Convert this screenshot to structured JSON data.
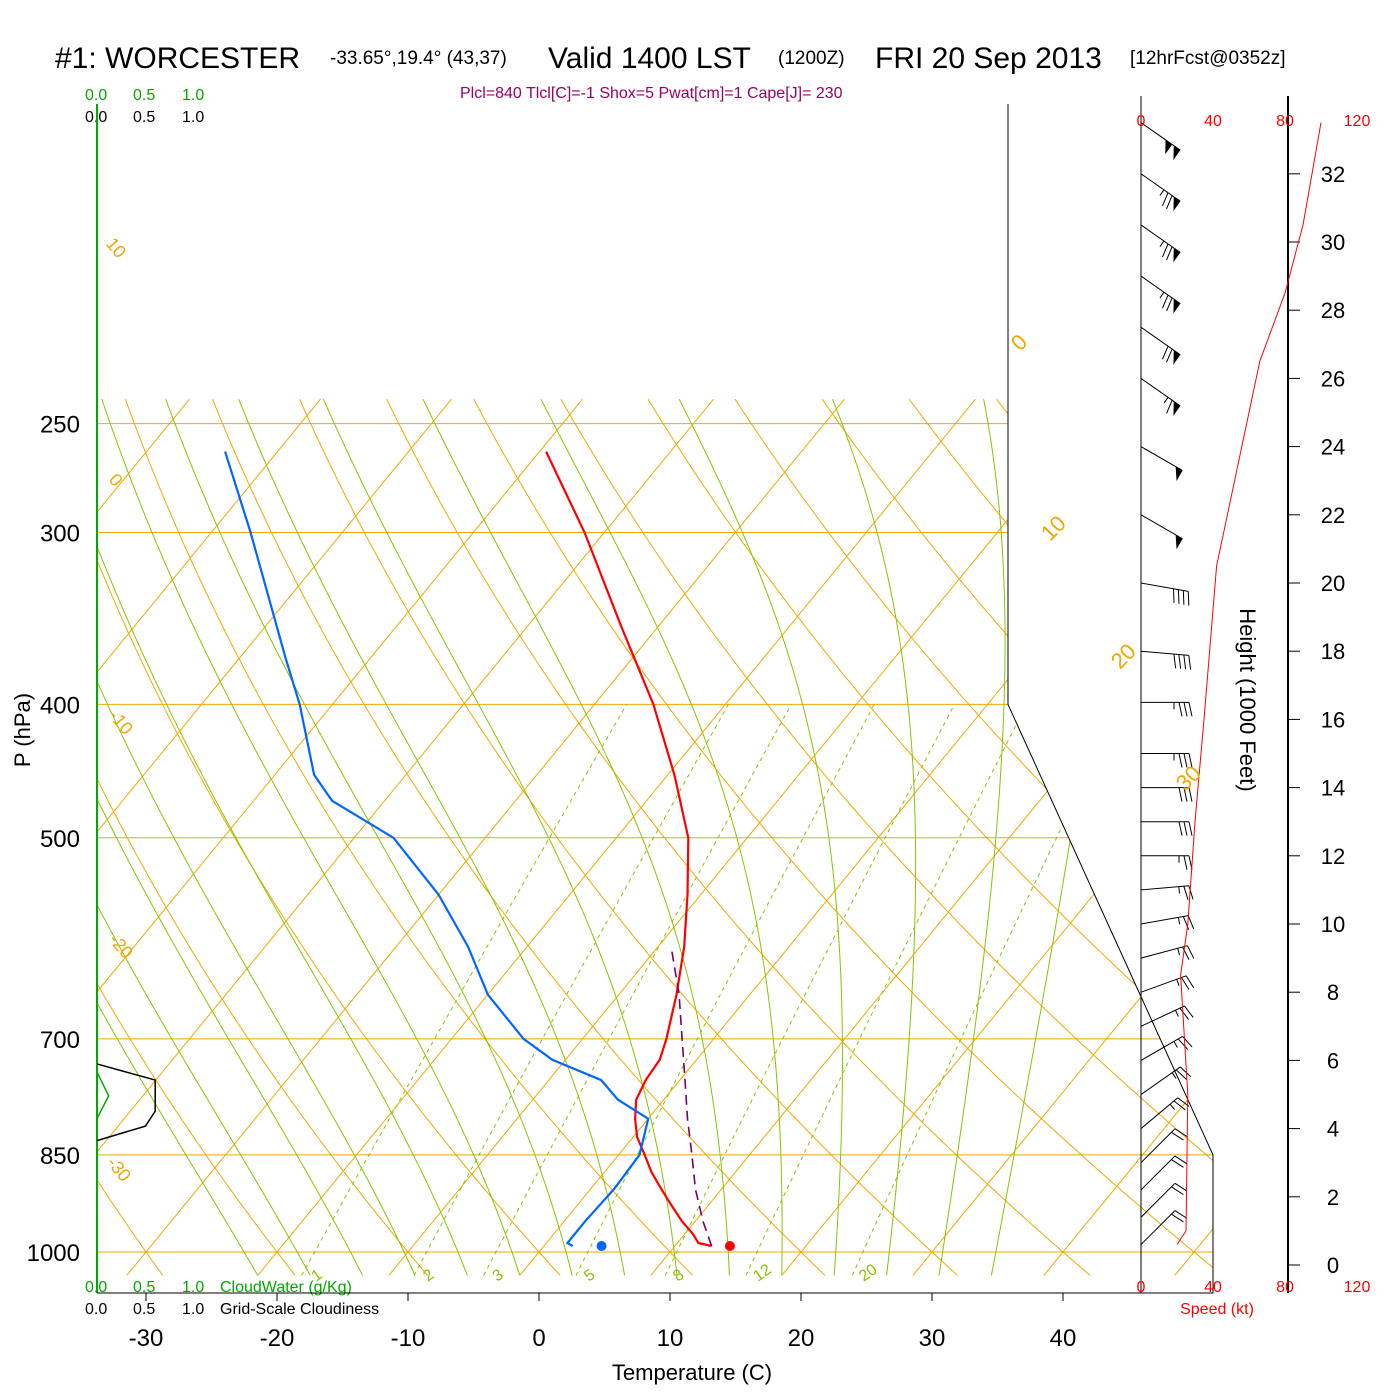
{
  "header": {
    "station": "#1: WORCESTER",
    "coords": "-33.65°,19.4° (43,37)",
    "valid": "Valid 1400 LST",
    "utc": "(1200Z)",
    "date": "FRI 20 Sep 2013",
    "forecast": "[12hrFcst@0352z]"
  },
  "indices": "Plcl=840 Tlcl[C]=-1 Shox=5 Pwat[cm]=1 Cape[J]= 230",
  "cloud_scales": {
    "ticks": [
      "0.0",
      "0.5",
      "1.0"
    ],
    "cloudwater_label": "CloudWater (g/Kg)",
    "cloudiness_label": "Grid-Scale Cloudiness"
  },
  "axes": {
    "pressure_label": "P (hPa)",
    "temperature_label": "Temperature (C)",
    "height_label": "Height (1000 Feet)",
    "speed_label": "Speed (kt)"
  },
  "colors": {
    "temperature": "#ff0000",
    "dewpoint": "#0066ff",
    "parcel": "#7a0066",
    "isotherm": "#f0a800",
    "dry_adiabat": "#f0a800",
    "moist_adiabat": "#88c400",
    "mixing_ratio": "#88c400",
    "cloudwater": "#00aa00",
    "indices_text": "#990066",
    "speed": "#ff0000"
  },
  "chart_data": {
    "type": "line",
    "subtype": "skew-T log-P sounding",
    "x_axis": {
      "label": "Temperature (C)",
      "ticks": [
        -30,
        -20,
        -10,
        0,
        10,
        20,
        30,
        40
      ],
      "range": [
        -34,
        36
      ]
    },
    "y_axis": {
      "label": "P (hPa)",
      "scale": "log",
      "ticks": [
        250,
        300,
        400,
        500,
        700,
        850,
        1000
      ],
      "range": [
        1040,
        250
      ]
    },
    "series": [
      {
        "name": "Temperature",
        "points": [
          [
            990,
            12.8
          ],
          [
            985,
            11.6
          ],
          [
            970,
            10.6
          ],
          [
            950,
            9.0
          ],
          [
            925,
            7.2
          ],
          [
            900,
            5.4
          ],
          [
            875,
            3.6
          ],
          [
            850,
            2.0
          ],
          [
            825,
            0.3
          ],
          [
            800,
            -1.0
          ],
          [
            775,
            -2.1
          ],
          [
            750,
            -2.6
          ],
          [
            725,
            -2.8
          ],
          [
            700,
            -3.6
          ],
          [
            650,
            -5.6
          ],
          [
            600,
            -8.0
          ],
          [
            550,
            -11.0
          ],
          [
            500,
            -14.5
          ],
          [
            450,
            -19.5
          ],
          [
            400,
            -25.5
          ],
          [
            350,
            -33.0
          ],
          [
            300,
            -41.5
          ],
          [
            262,
            -49.5
          ]
        ]
      },
      {
        "name": "Dew Point",
        "points": [
          [
            990,
            2.2
          ],
          [
            985,
            1.6
          ],
          [
            950,
            1.6
          ],
          [
            900,
            1.8
          ],
          [
            850,
            1.6
          ],
          [
            800,
            0.0
          ],
          [
            775,
            -3.5
          ],
          [
            750,
            -6.0
          ],
          [
            725,
            -11.0
          ],
          [
            700,
            -14.5
          ],
          [
            650,
            -20.0
          ],
          [
            600,
            -24.5
          ],
          [
            550,
            -30.0
          ],
          [
            500,
            -37.0
          ],
          [
            470,
            -44.0
          ],
          [
            450,
            -47.0
          ],
          [
            400,
            -52.5
          ],
          [
            370,
            -56.5
          ],
          [
            300,
            -67.0
          ],
          [
            262,
            -74.0
          ]
        ]
      },
      {
        "name": "Parcel",
        "points": [
          [
            990,
            12.8
          ],
          [
            950,
            10.6
          ],
          [
            900,
            8.0
          ],
          [
            850,
            5.6
          ],
          [
            800,
            3.0
          ],
          [
            750,
            0.4
          ],
          [
            700,
            -2.4
          ],
          [
            650,
            -5.4
          ],
          [
            600,
            -9.0
          ]
        ]
      }
    ],
    "surface_markers": {
      "temperature": 14.2,
      "dewpoint": 4.4,
      "pressure": 990
    },
    "isotherm_labels": [
      "10",
      "0",
      "-10",
      "-20",
      "-30"
    ],
    "mixing_ratio_labels": [
      "1",
      "2",
      "3",
      "5",
      "8",
      "12",
      "20"
    ],
    "dry_adiabat_labels": [
      "0",
      "10",
      "20",
      "30"
    ],
    "height_axis": {
      "ticks": [
        0,
        2,
        4,
        6,
        8,
        10,
        12,
        14,
        16,
        18,
        20,
        22,
        24,
        26,
        28,
        30,
        32
      ],
      "units": "1000 ft"
    },
    "wind_speed_axis": {
      "ticks": [
        "0",
        "40",
        "80",
        "120"
      ],
      "units": "kt"
    },
    "wind_speed_profile": [
      [
        0.6,
        20
      ],
      [
        1.0,
        25
      ],
      [
        5.0,
        26
      ],
      [
        8.5,
        22
      ],
      [
        10.0,
        26
      ],
      [
        13.0,
        30
      ],
      [
        16.0,
        35
      ],
      [
        20.5,
        42
      ],
      [
        22.0,
        48
      ],
      [
        26.5,
        66
      ],
      [
        28.5,
        80
      ],
      [
        30.5,
        90
      ],
      [
        32.0,
        95
      ],
      [
        33.5,
        100
      ]
    ],
    "cloudiness_profile": [
      [
        730,
        0
      ],
      [
        750,
        0.6
      ],
      [
        790,
        0.6
      ],
      [
        810,
        0.5
      ],
      [
        830,
        0
      ]
    ],
    "cloudwater_profile": [
      [
        740,
        0
      ],
      [
        770,
        0.02
      ],
      [
        800,
        0
      ]
    ],
    "wind_barbs": [
      {
        "height_kft": 0.6,
        "dir": 225,
        "speed": 20
      },
      {
        "height_kft": 1.4,
        "dir": 225,
        "speed": 20
      },
      {
        "height_kft": 2.2,
        "dir": 225,
        "speed": 20
      },
      {
        "height_kft": 3.0,
        "dir": 225,
        "speed": 20
      },
      {
        "height_kft": 4.0,
        "dir": 230,
        "speed": 25
      },
      {
        "height_kft": 5.0,
        "dir": 235,
        "speed": 25
      },
      {
        "height_kft": 6.0,
        "dir": 240,
        "speed": 25
      },
      {
        "height_kft": 7.0,
        "dir": 245,
        "speed": 25
      },
      {
        "height_kft": 8.0,
        "dir": 250,
        "speed": 25
      },
      {
        "height_kft": 9.0,
        "dir": 255,
        "speed": 25
      },
      {
        "height_kft": 10.0,
        "dir": 260,
        "speed": 25
      },
      {
        "height_kft": 11.0,
        "dir": 265,
        "speed": 25
      },
      {
        "height_kft": 12.0,
        "dir": 270,
        "speed": 25
      },
      {
        "height_kft": 13.0,
        "dir": 270,
        "speed": 30
      },
      {
        "height_kft": 14.0,
        "dir": 270,
        "speed": 30
      },
      {
        "height_kft": 15.0,
        "dir": 270,
        "speed": 35
      },
      {
        "height_kft": 16.5,
        "dir": 270,
        "speed": 35
      },
      {
        "height_kft": 18.0,
        "dir": 275,
        "speed": 40
      },
      {
        "height_kft": 20.0,
        "dir": 280,
        "speed": 40
      },
      {
        "height_kft": 22.0,
        "dir": 300,
        "speed": 50
      },
      {
        "height_kft": 24.0,
        "dir": 300,
        "speed": 50
      },
      {
        "height_kft": 26.0,
        "dir": 305,
        "speed": 65
      },
      {
        "height_kft": 27.5,
        "dir": 305,
        "speed": 70
      },
      {
        "height_kft": 29.0,
        "dir": 305,
        "speed": 75
      },
      {
        "height_kft": 30.5,
        "dir": 305,
        "speed": 75
      },
      {
        "height_kft": 32.0,
        "dir": 305,
        "speed": 75
      },
      {
        "height_kft": 33.5,
        "dir": 305,
        "speed": 100
      }
    ]
  }
}
